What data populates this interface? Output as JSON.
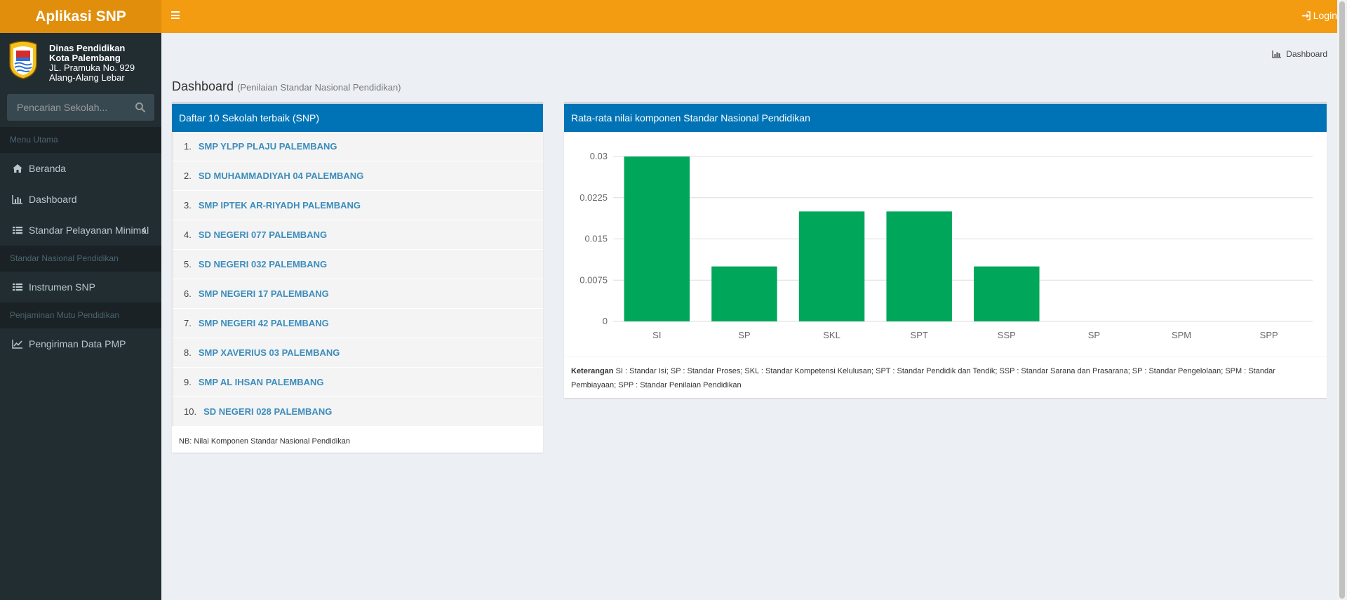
{
  "app": {
    "title": "Aplikasi SNP"
  },
  "topbar": {
    "login_label": "Login"
  },
  "org": {
    "line1": "Dinas Pendidikan",
    "line2": "Kota Palembang",
    "line3": "JL. Pramuka No. 929",
    "line4": "Alang-Alang Lebar"
  },
  "search": {
    "placeholder": "Pencarian Sekolah..."
  },
  "sidebar": {
    "header_main": "Menu Utama",
    "item_beranda": "Beranda",
    "item_dashboard": "Dashboard",
    "item_spm": "Standar Pelayanan Minimal",
    "header_snp": "Standar Nasional Pendidikan",
    "item_instrumen": "Instrumen SNP",
    "header_pmp": "Penjaminan Mutu Pendidikan",
    "item_pengiriman": "Pengiriman Data PMP"
  },
  "breadcrumb": {
    "label": "Dashboard"
  },
  "page": {
    "title": "Dashboard",
    "subtitle": "(Penilaian Standar Nasional Pendidikan)"
  },
  "top_schools": {
    "header": "Daftar 10 Sekolah terbaik (SNP)",
    "items": [
      {
        "num": "1.",
        "name": "SMP YLPP PLAJU PALEMBANG"
      },
      {
        "num": "2.",
        "name": "SD MUHAMMADIYAH 04 PALEMBANG"
      },
      {
        "num": "3.",
        "name": "SMP IPTEK AR-RIYADH PALEMBANG"
      },
      {
        "num": "4.",
        "name": "SD NEGERI 077 PALEMBANG"
      },
      {
        "num": "5.",
        "name": "SD NEGERI 032 PALEMBANG"
      },
      {
        "num": "6.",
        "name": "SMP NEGERI 17 PALEMBANG"
      },
      {
        "num": "7.",
        "name": "SMP NEGERI 42 PALEMBANG"
      },
      {
        "num": "8.",
        "name": "SMP XAVERIUS 03 PALEMBANG"
      },
      {
        "num": "9.",
        "name": "SMP AL IHSAN PALEMBANG"
      },
      {
        "num": "10.",
        "name": "SD NEGERI 028 PALEMBANG"
      }
    ],
    "note": "NB: Nilai Komponen Standar Nasional Pendidikan"
  },
  "chart_box": {
    "header": "Rata-rata nilai komponen Standar Nasional Pendidikan",
    "legend_title": "Keterangan",
    "legend_text": "SI : Standar Isi; SP : Standar Proses; SKL : Standar Kompetensi Kelulusan; SPT : Standar Pendidik dan Tendik; SSP : Standar Sarana dan Prasarana; SP : Standar Pengelolaan; SPM : Standar Pembiayaan; SPP : Standar Penilaian Pendidikan"
  },
  "chart_data": {
    "type": "bar",
    "categories": [
      "SI",
      "SP",
      "SKL",
      "SPT",
      "SSP",
      "SP",
      "SPM",
      "SPP"
    ],
    "values": [
      0.03,
      0.01,
      0.02,
      0.02,
      0.01,
      0,
      0,
      0
    ],
    "yticks": [
      "0",
      "0.0075",
      "0.015",
      "0.0225",
      "0.03"
    ],
    "ylim": [
      0,
      0.03
    ],
    "grid": true,
    "bar_color": "#00a65a"
  },
  "colors": {
    "header": "#f39c12",
    "logo": "#e08e0b",
    "sidebar": "#222d32",
    "box_header": "#0073b7",
    "link": "#3c8dbc"
  }
}
